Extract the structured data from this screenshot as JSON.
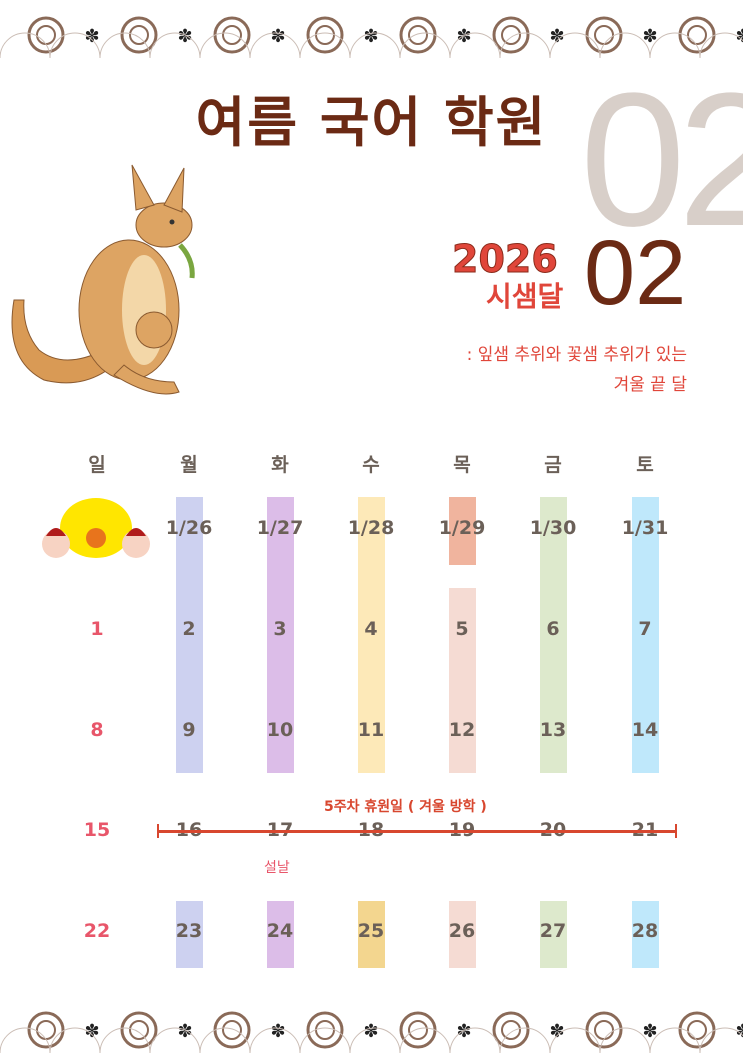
{
  "title": "여름 국어 학원",
  "month_bg": "02",
  "month": "02",
  "logo": {
    "year": "2026",
    "name": "시샘달"
  },
  "description": [
    ": 잎샘 추위와 꽃샘 추위가 있는",
    "겨울 끝 달"
  ],
  "weekdays": [
    "일",
    "월",
    "화",
    "수",
    "목",
    "금",
    "토"
  ],
  "weeks": [
    [
      "",
      "1/26",
      "1/27",
      "1/28",
      "1/29",
      "1/30",
      "1/31"
    ],
    [
      "1",
      "2",
      "3",
      "4",
      "5",
      "6",
      "7"
    ],
    [
      "8",
      "9",
      "10",
      "11",
      "12",
      "13",
      "14"
    ],
    [
      "15",
      "16",
      "17",
      "18",
      "19",
      "20",
      "21"
    ],
    [
      "22",
      "23",
      "24",
      "25",
      "26",
      "27",
      "28"
    ]
  ],
  "vacation_note": "5주차 휴원일 ( 겨울 방학 )",
  "holiday_note": "설날",
  "colors": {
    "title": "#6b2a14",
    "sunday": "#e8566a",
    "accent": "#d8472f",
    "columns": [
      "#cdd1f0",
      "#dcbde8",
      "#fde9b8",
      "#f5dbd3",
      "#dde9cc",
      "#bfe8fb"
    ]
  }
}
